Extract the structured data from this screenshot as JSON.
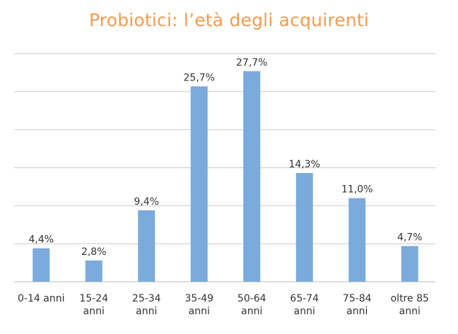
{
  "chart_data": {
    "type": "bar",
    "title": "Probiotici: l’età degli acquirenti",
    "categories": [
      [
        "0-14 anni"
      ],
      [
        "15-24",
        "anni"
      ],
      [
        "25-34",
        "anni"
      ],
      [
        "35-49",
        "anni"
      ],
      [
        "50-64",
        "anni"
      ],
      [
        "65-74",
        "anni"
      ],
      [
        "75-84",
        "anni"
      ],
      [
        "oltre 85",
        "anni"
      ]
    ],
    "values": [
      4.4,
      2.8,
      9.4,
      25.7,
      27.7,
      14.3,
      11.0,
      4.7
    ],
    "data_labels": [
      "4,4%",
      "2,8%",
      "9,4%",
      "25,7%",
      "27,7%",
      "14,3%",
      "11,0%",
      "4,7%"
    ],
    "xlabel": "",
    "ylabel": "",
    "ylim": [
      0,
      30
    ],
    "grid_step": 5,
    "grid": true,
    "legend": "none",
    "colors": {
      "bar": "#7BAADC",
      "title": "#F39B50",
      "grid": "#D0D0D0"
    }
  }
}
